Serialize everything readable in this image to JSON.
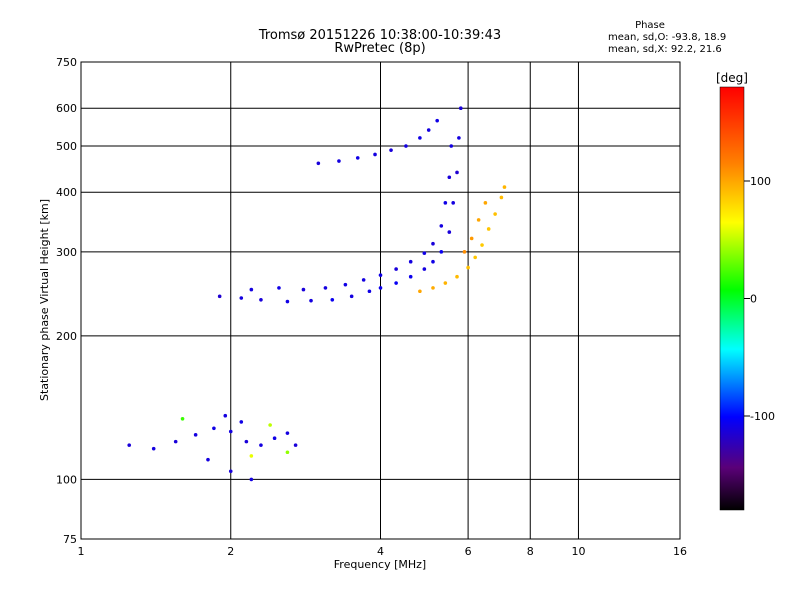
{
  "header": {
    "title": "Tromsø 20151226 10:38:00-10:39:43",
    "subtitle": "RwPretec (8p)",
    "phase_title": "Phase",
    "phase_o": "mean, sd,O: -93.8, 18.9",
    "phase_x": "mean, sd,X:  92.2, 21.6"
  },
  "colorbar": {
    "unit_label": "[deg]",
    "tick_labels": [
      "100",
      "0",
      "-100"
    ],
    "tick_values": [
      100,
      0,
      -100
    ],
    "range": [
      -180,
      180
    ],
    "colormap": "rainbow"
  },
  "chart_data": {
    "type": "scatter",
    "title": "Tromsø 20151226 10:38:00-10:39:43",
    "subtitle": "RwPretec (8p)",
    "xlabel": "Frequency [MHz]",
    "ylabel": "Stationary phase Virtual Height [km]",
    "x_scale": "log",
    "y_scale": "log",
    "xlim": [
      1,
      16
    ],
    "ylim": [
      75,
      750
    ],
    "x_ticks": [
      1,
      2,
      4,
      6,
      8,
      10,
      16
    ],
    "x_tick_labels": [
      "1",
      "2",
      "4",
      "6",
      "8",
      "10",
      "16"
    ],
    "y_ticks": [
      75,
      100,
      200,
      300,
      400,
      500,
      600,
      750
    ],
    "y_tick_labels": [
      "75",
      "100",
      "200",
      "300",
      "400",
      "500",
      "600",
      "750"
    ],
    "grid": true,
    "color_scale": "phase [deg], -180 to 180",
    "series": [
      {
        "points": [
          [
            1.9,
            242,
            -115
          ],
          [
            2.1,
            240,
            -110
          ],
          [
            2.3,
            238,
            -112
          ],
          [
            2.6,
            236,
            -108
          ],
          [
            2.9,
            237,
            -110
          ],
          [
            3.2,
            238,
            -105
          ],
          [
            3.5,
            242,
            -110
          ],
          [
            3.8,
            248,
            -108
          ],
          [
            4.0,
            252,
            -106
          ],
          [
            4.3,
            258,
            -104
          ],
          [
            4.6,
            266,
            -106
          ],
          [
            4.9,
            276,
            -110
          ],
          [
            5.1,
            286,
            -108
          ],
          [
            5.3,
            300,
            -105
          ],
          [
            5.5,
            330,
            -112
          ],
          [
            5.6,
            380,
            -110
          ],
          [
            5.7,
            440,
            -115
          ],
          [
            5.75,
            520,
            -110
          ],
          [
            5.8,
            600,
            -112
          ],
          [
            2.2,
            250,
            -110
          ],
          [
            2.5,
            252,
            -108
          ],
          [
            2.8,
            250,
            -112
          ],
          [
            3.1,
            252,
            -110
          ],
          [
            3.4,
            256,
            -108
          ],
          [
            3.7,
            262,
            -110
          ],
          [
            4.0,
            268,
            -108
          ],
          [
            4.3,
            276,
            -112
          ],
          [
            4.6,
            286,
            -110
          ],
          [
            4.9,
            298,
            -108
          ],
          [
            5.1,
            312,
            -112
          ],
          [
            5.3,
            340,
            -110
          ],
          [
            5.4,
            380,
            -108
          ],
          [
            5.5,
            430,
            -112
          ],
          [
            5.55,
            500,
            -110
          ],
          [
            3.0,
            460,
            -112
          ],
          [
            3.3,
            465,
            -110
          ],
          [
            3.6,
            472,
            -108
          ],
          [
            3.9,
            480,
            -110
          ],
          [
            4.2,
            490,
            -112
          ],
          [
            4.5,
            500,
            -110
          ],
          [
            4.8,
            520,
            -108
          ],
          [
            5.0,
            540,
            -110
          ],
          [
            5.2,
            565,
            -108
          ]
        ]
      },
      {
        "points": [
          [
            4.8,
            248,
            100
          ],
          [
            5.1,
            252,
            98
          ],
          [
            5.4,
            258,
            95
          ],
          [
            5.7,
            266,
            92
          ],
          [
            6.0,
            278,
            90
          ],
          [
            6.2,
            292,
            88
          ],
          [
            6.4,
            310,
            86
          ],
          [
            6.6,
            335,
            88
          ],
          [
            6.8,
            360,
            90
          ],
          [
            7.0,
            390,
            92
          ],
          [
            7.1,
            410,
            94
          ],
          [
            5.9,
            300,
            110
          ],
          [
            6.1,
            320,
            105
          ],
          [
            6.3,
            350,
            100
          ],
          [
            6.5,
            380,
            100
          ]
        ]
      },
      {
        "points": [
          [
            1.25,
            118,
            -112
          ],
          [
            1.4,
            116,
            -110
          ],
          [
            1.55,
            120,
            -112
          ],
          [
            1.7,
            124,
            -110
          ],
          [
            1.85,
            128,
            -108
          ],
          [
            2.0,
            126,
            -110
          ],
          [
            2.15,
            120,
            -112
          ],
          [
            2.3,
            118,
            -110
          ],
          [
            2.45,
            122,
            -108
          ],
          [
            2.6,
            125,
            -110
          ],
          [
            2.7,
            118,
            -112
          ],
          [
            1.8,
            110,
            -110
          ],
          [
            2.0,
            104,
            -112
          ],
          [
            2.2,
            100,
            -110
          ],
          [
            2.1,
            132,
            -108
          ],
          [
            1.95,
            136,
            -110
          ],
          [
            2.4,
            130,
            50
          ],
          [
            2.6,
            114,
            40
          ],
          [
            2.2,
            112,
            60
          ],
          [
            1.6,
            134,
            20
          ]
        ]
      }
    ]
  }
}
